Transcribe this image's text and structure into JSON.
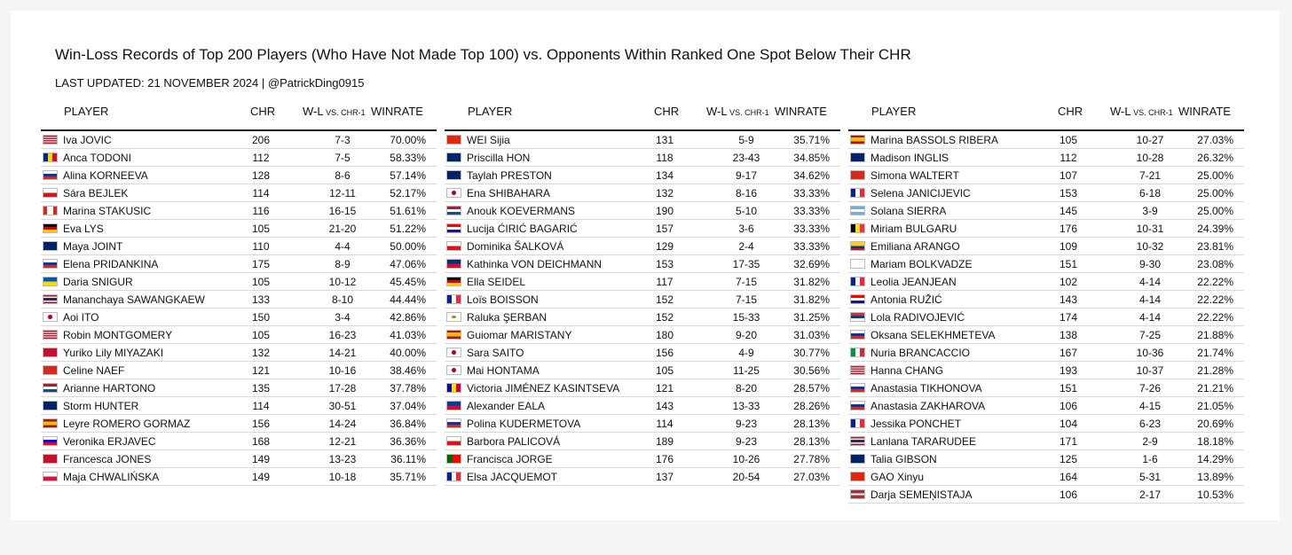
{
  "title": "Win-Loss Records of Top 200 Players (Who Have Not Made Top 100) vs. Opponents Within Ranked One Spot Below Their CHR",
  "subtitle": "LAST UPDATED: 21 NOVEMBER 2024 | @PatrickDing0915",
  "headers": {
    "player": "PLAYER",
    "chr": "CHR",
    "wl_main": "W-L",
    "wl_small": " VS. CHR-1",
    "winrate": "WINRATE"
  },
  "flags": {
    "USA": "linear-gradient(#b22234 0 14%, #fff 14% 28%, #b22234 28% 42%, #fff 42% 57%, #b22234 57% 71%, #fff 71% 85%, #b22234 85%)",
    "ROU": "linear-gradient(90deg, #002b7f 0 33%, #fcd116 33% 66%, #ce1126 66%)",
    "RUS": "linear-gradient(#ffffff 0 33%, #0039a6 33% 66%, #d52b1e 66%)",
    "CZE": "linear-gradient(#ffffff 0 50%, #d7141a 50%)",
    "CAN": "linear-gradient(90deg, #d52b1e 0 25%, #ffffff 25% 75%, #d52b1e 75%)",
    "GER": "linear-gradient(#000000 0 33%, #dd0000 33% 66%, #ffce00 66%)",
    "AUS": "linear-gradient(#012169, #012169)",
    "UKR": "linear-gradient(#0057b7 0 50%, #ffd700 50%)",
    "THA": "linear-gradient(#a51931 0 17%, #f4f5f8 17% 33%, #2d2a4a 33% 67%, #f4f5f8 67% 83%, #a51931 83%)",
    "JPN": "radial-gradient(circle, #bc002d 0 28%, #ffffff 30%)",
    "GBR": "linear-gradient(#c8102e 0 0), linear-gradient(#012169, #012169)",
    "SUI": "linear-gradient(#d52b1e, #d52b1e)",
    "NED": "linear-gradient(#ae1c28 0 33%, #ffffff 33% 66%, #21468b 66%)",
    "ESP": "linear-gradient(#aa151b 0 25%, #f1bf00 25% 75%, #aa151b 75%)",
    "SLO": "linear-gradient(#ffffff 0 33%, #0000ff 33% 66%, #ff0000 66%)",
    "POL": "linear-gradient(#ffffff 0 50%, #dc143c 50%)",
    "CHN": "linear-gradient(#de2910, #de2910)",
    "BEL": "linear-gradient(90deg, #000000 0 33%, #fdda24 33% 66%, #ef3340 66%)",
    "CRO": "linear-gradient(#ff0000 0 33%, #ffffff 33% 66%, #171796 66%)",
    "LIE": "linear-gradient(#002b7f 0 50%, #ce1126 50%)",
    "FRA": "linear-gradient(90deg, #002395 0 33%, #ffffff 33% 66%, #ed2939 66%)",
    "CYP": "radial-gradient(ellipse at 50% 50%, #d57800 0 22%, #ffffff 25%)",
    "AND": "linear-gradient(90deg, #10069f 0 33%, #fedd00 33% 66%, #d50032 66%)",
    "PHI": "linear-gradient(#0038a8 0 50%, #ce1126 50%)",
    "POR": "linear-gradient(90deg, #006600 0 40%, #ff0000 40%)",
    "ARG": "linear-gradient(#74acdf 0 33%, #ffffff 33% 66%, #74acdf 66%)",
    "COL": "linear-gradient(#fcd116 0 50%, #003893 50% 75%, #ce1126 75%)",
    "GEO": "linear-gradient(#ffffff, #ffffff)",
    "SRB": "linear-gradient(#c6363c 0 33%, #0c4076 33% 66%, #ffffff 66%)",
    "ITA": "linear-gradient(90deg, #009246 0 33%, #ffffff 33% 66%, #ce2b37 66%)",
    "LAT": "linear-gradient(#9e3039 0 40%, #ffffff 40% 60%, #9e3039 60%)"
  },
  "columns": [
    [
      {
        "flag": "USA",
        "player": "Iva JOVIC",
        "chr": "206",
        "wl": "7-3",
        "winrate": "70.00%"
      },
      {
        "flag": "ROU",
        "player": "Anca TODONI",
        "chr": "112",
        "wl": "7-5",
        "winrate": "58.33%"
      },
      {
        "flag": "RUS",
        "player": "Alina KORNEEVA",
        "chr": "128",
        "wl": "8-6",
        "winrate": "57.14%"
      },
      {
        "flag": "CZE",
        "player": "Sára BEJLEK",
        "chr": "114",
        "wl": "12-11",
        "winrate": "52.17%"
      },
      {
        "flag": "CAN",
        "player": "Marina STAKUSIC",
        "chr": "116",
        "wl": "16-15",
        "winrate": "51.61%"
      },
      {
        "flag": "GER",
        "player": "Eva LYS",
        "chr": "105",
        "wl": "21-20",
        "winrate": "51.22%"
      },
      {
        "flag": "AUS",
        "player": "Maya JOINT",
        "chr": "110",
        "wl": "4-4",
        "winrate": "50.00%"
      },
      {
        "flag": "RUS",
        "player": "Elena PRIDANKINA",
        "chr": "175",
        "wl": "8-9",
        "winrate": "47.06%"
      },
      {
        "flag": "UKR",
        "player": "Daria SNIGUR",
        "chr": "105",
        "wl": "10-12",
        "winrate": "45.45%"
      },
      {
        "flag": "THA",
        "player": "Mananchaya SAWANGKAEW",
        "chr": "133",
        "wl": "8-10",
        "winrate": "44.44%"
      },
      {
        "flag": "JPN",
        "player": "Aoi ITO",
        "chr": "150",
        "wl": "3-4",
        "winrate": "42.86%"
      },
      {
        "flag": "USA",
        "player": "Robin MONTGOMERY",
        "chr": "105",
        "wl": "16-23",
        "winrate": "41.03%"
      },
      {
        "flag": "GBR",
        "player": "Yuriko Lily MIYAZAKI",
        "chr": "132",
        "wl": "14-21",
        "winrate": "40.00%"
      },
      {
        "flag": "SUI",
        "player": "Celine NAEF",
        "chr": "121",
        "wl": "10-16",
        "winrate": "38.46%"
      },
      {
        "flag": "NED",
        "player": "Arianne HARTONO",
        "chr": "135",
        "wl": "17-28",
        "winrate": "37.78%"
      },
      {
        "flag": "AUS",
        "player": "Storm HUNTER",
        "chr": "114",
        "wl": "30-51",
        "winrate": "37.04%"
      },
      {
        "flag": "ESP",
        "player": "Leyre ROMERO GORMAZ",
        "chr": "156",
        "wl": "14-24",
        "winrate": "36.84%"
      },
      {
        "flag": "SLO",
        "player": "Veronika ERJAVEC",
        "chr": "168",
        "wl": "12-21",
        "winrate": "36.36%"
      },
      {
        "flag": "GBR",
        "player": "Francesca JONES",
        "chr": "149",
        "wl": "13-23",
        "winrate": "36.11%"
      },
      {
        "flag": "POL",
        "player": "Maja CHWALIŃSKA",
        "chr": "149",
        "wl": "10-18",
        "winrate": "35.71%"
      }
    ],
    [
      {
        "flag": "CHN",
        "player": "WEI Sijia",
        "chr": "131",
        "wl": "5-9",
        "winrate": "35.71%"
      },
      {
        "flag": "AUS",
        "player": "Priscilla HON",
        "chr": "118",
        "wl": "23-43",
        "winrate": "34.85%"
      },
      {
        "flag": "AUS",
        "player": "Taylah PRESTON",
        "chr": "134",
        "wl": "9-17",
        "winrate": "34.62%"
      },
      {
        "flag": "JPN",
        "player": "Ena SHIBAHARA",
        "chr": "132",
        "wl": "8-16",
        "winrate": "33.33%"
      },
      {
        "flag": "NED",
        "player": "Anouk KOEVERMANS",
        "chr": "190",
        "wl": "5-10",
        "winrate": "33.33%"
      },
      {
        "flag": "CRO",
        "player": "Lucija ĆIRIĆ BAGARIĆ",
        "chr": "157",
        "wl": "3-6",
        "winrate": "33.33%"
      },
      {
        "flag": "CZE",
        "player": "Dominika ŠALKOVÁ",
        "chr": "129",
        "wl": "2-4",
        "winrate": "33.33%"
      },
      {
        "flag": "LIE",
        "player": "Kathinka VON DEICHMANN",
        "chr": "153",
        "wl": "17-35",
        "winrate": "32.69%"
      },
      {
        "flag": "GER",
        "player": "Ella SEIDEL",
        "chr": "117",
        "wl": "7-15",
        "winrate": "31.82%"
      },
      {
        "flag": "FRA",
        "player": "Loïs BOISSON",
        "chr": "152",
        "wl": "7-15",
        "winrate": "31.82%"
      },
      {
        "flag": "CYP",
        "player": "Raluka ŞERBAN",
        "chr": "152",
        "wl": "15-33",
        "winrate": "31.25%"
      },
      {
        "flag": "ESP",
        "player": "Guiomar MARISTANY",
        "chr": "180",
        "wl": "9-20",
        "winrate": "31.03%"
      },
      {
        "flag": "JPN",
        "player": "Sara SAITO",
        "chr": "156",
        "wl": "4-9",
        "winrate": "30.77%"
      },
      {
        "flag": "JPN",
        "player": "Mai HONTAMA",
        "chr": "105",
        "wl": "11-25",
        "winrate": "30.56%"
      },
      {
        "flag": "AND",
        "player": "Victoria JIMÉNEZ KASINTSEVA",
        "chr": "121",
        "wl": "8-20",
        "winrate": "28.57%"
      },
      {
        "flag": "PHI",
        "player": "Alexander EALA",
        "chr": "143",
        "wl": "13-33",
        "winrate": "28.26%"
      },
      {
        "flag": "RUS",
        "player": "Polina KUDERMETOVA",
        "chr": "114",
        "wl": "9-23",
        "winrate": "28.13%"
      },
      {
        "flag": "CZE",
        "player": "Barbora PALICOVÁ",
        "chr": "189",
        "wl": "9-23",
        "winrate": "28.13%"
      },
      {
        "flag": "POR",
        "player": "Francisca JORGE",
        "chr": "176",
        "wl": "10-26",
        "winrate": "27.78%"
      },
      {
        "flag": "FRA",
        "player": "Elsa JACQUEMOT",
        "chr": "137",
        "wl": "20-54",
        "winrate": "27.03%"
      }
    ],
    [
      {
        "flag": "ESP",
        "player": "Marina BASSOLS RIBERA",
        "chr": "105",
        "wl": "10-27",
        "winrate": "27.03%"
      },
      {
        "flag": "AUS",
        "player": "Madison INGLIS",
        "chr": "112",
        "wl": "10-28",
        "winrate": "26.32%"
      },
      {
        "flag": "SUI",
        "player": "Simona WALTERT",
        "chr": "107",
        "wl": "7-21",
        "winrate": "25.00%"
      },
      {
        "flag": "FRA",
        "player": "Selena JANICIJEVIC",
        "chr": "153",
        "wl": "6-18",
        "winrate": "25.00%"
      },
      {
        "flag": "ARG",
        "player": "Solana SIERRA",
        "chr": "145",
        "wl": "3-9",
        "winrate": "25.00%"
      },
      {
        "flag": "BEL",
        "player": "Miriam BULGARU",
        "chr": "176",
        "wl": "10-31",
        "winrate": "24.39%"
      },
      {
        "flag": "COL",
        "player": "Emiliana ARANGO",
        "chr": "109",
        "wl": "10-32",
        "winrate": "23.81%"
      },
      {
        "flag": "GEO",
        "player": "Mariam BOLKVADZE",
        "chr": "151",
        "wl": "9-30",
        "winrate": "23.08%"
      },
      {
        "flag": "FRA",
        "player": "Leolia JEANJEAN",
        "chr": "102",
        "wl": "4-14",
        "winrate": "22.22%"
      },
      {
        "flag": "CRO",
        "player": "Antonia RUŽIĆ",
        "chr": "143",
        "wl": "4-14",
        "winrate": "22.22%"
      },
      {
        "flag": "SRB",
        "player": "Lola RADIVOJEVIĆ",
        "chr": "174",
        "wl": "4-14",
        "winrate": "22.22%"
      },
      {
        "flag": "RUS",
        "player": "Oksana SELEKHMETEVA",
        "chr": "138",
        "wl": "7-25",
        "winrate": "21.88%"
      },
      {
        "flag": "ITA",
        "player": "Nuria BRANCACCIO",
        "chr": "167",
        "wl": "10-36",
        "winrate": "21.74%"
      },
      {
        "flag": "USA",
        "player": "Hanna CHANG",
        "chr": "193",
        "wl": "10-37",
        "winrate": "21.28%"
      },
      {
        "flag": "RUS",
        "player": "Anastasia TIKHONOVA",
        "chr": "151",
        "wl": "7-26",
        "winrate": "21.21%"
      },
      {
        "flag": "RUS",
        "player": "Anastasia ZAKHAROVA",
        "chr": "106",
        "wl": "4-15",
        "winrate": "21.05%"
      },
      {
        "flag": "FRA",
        "player": "Jessika PONCHET",
        "chr": "104",
        "wl": "6-23",
        "winrate": "20.69%"
      },
      {
        "flag": "THA",
        "player": "Lanlana TARARUDEE",
        "chr": "171",
        "wl": "2-9",
        "winrate": "18.18%"
      },
      {
        "flag": "AUS",
        "player": "Talia GIBSON",
        "chr": "125",
        "wl": "1-6",
        "winrate": "14.29%"
      },
      {
        "flag": "CHN",
        "player": "GAO Xinyu",
        "chr": "164",
        "wl": "5-31",
        "winrate": "13.89%"
      },
      {
        "flag": "LAT",
        "player": "Darja SEMEŅISTAJA",
        "chr": "106",
        "wl": "2-17",
        "winrate": "10.53%"
      }
    ]
  ],
  "chart_data": {
    "type": "table",
    "title": "Win-Loss Records of Top 200 Players (Who Have Not Made Top 100) vs. Opponents Within Ranked One Spot Below Their CHR",
    "subtitle": "LAST UPDATED: 21 NOVEMBER 2024 | @PatrickDing0915",
    "columns": [
      "PLAYER",
      "CHR",
      "W-L VS. CHR-1",
      "WINRATE"
    ],
    "row_count": 61
  }
}
